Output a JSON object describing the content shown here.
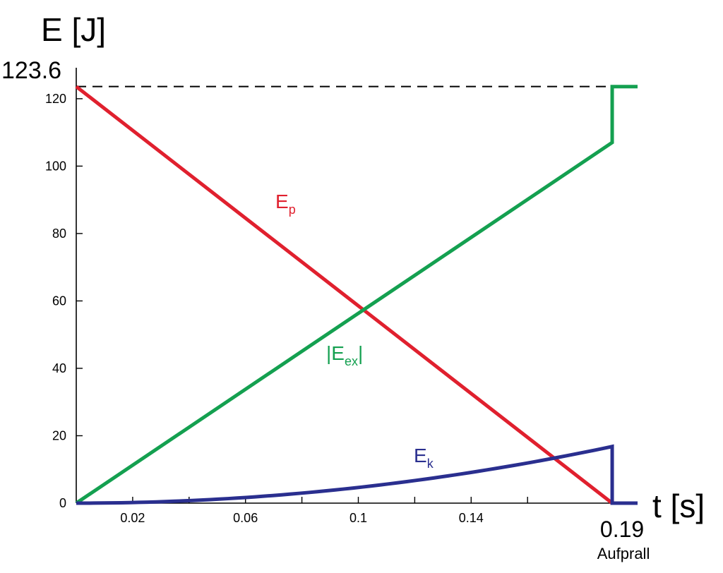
{
  "chart_data": {
    "type": "line",
    "ylabel": "E [J]",
    "xlabel": "t [s]",
    "xlim": [
      0,
      0.199
    ],
    "ylim": [
      0,
      125
    ],
    "x_ticks": [
      0.02,
      0.06,
      0.1,
      0.14
    ],
    "x_minor_ticks": [
      0.04,
      0.08,
      0.12,
      0.16
    ],
    "y_ticks": [
      0,
      20,
      40,
      60,
      80,
      100,
      120
    ],
    "special_x": {
      "value": 0.19,
      "label": "0.19",
      "sublabel": "Aufprall"
    },
    "special_y": {
      "value": 123.6,
      "label": "123.6",
      "style": "dashed"
    },
    "series": [
      {
        "name": "E_p",
        "label_main": "E",
        "label_sub": "p",
        "color": "#e0202e",
        "points": [
          [
            0,
            123.6
          ],
          [
            0.19,
            0
          ]
        ]
      },
      {
        "name": "|E_ex|",
        "label_main": "|E",
        "label_sub": "ex",
        "label_suffix": "|",
        "color": "#14a050",
        "points": [
          [
            0,
            0
          ],
          [
            0.19,
            107
          ],
          [
            0.19,
            123.6
          ],
          [
            0.199,
            123.6
          ]
        ]
      },
      {
        "name": "E_k",
        "label_main": "E",
        "label_sub": "k",
        "color": "#2a2f8f",
        "curve": "quadratic",
        "x_end": 0.19,
        "y_end": 16.8,
        "tail": [
          [
            0.19,
            0
          ],
          [
            0.199,
            0
          ]
        ]
      }
    ]
  }
}
